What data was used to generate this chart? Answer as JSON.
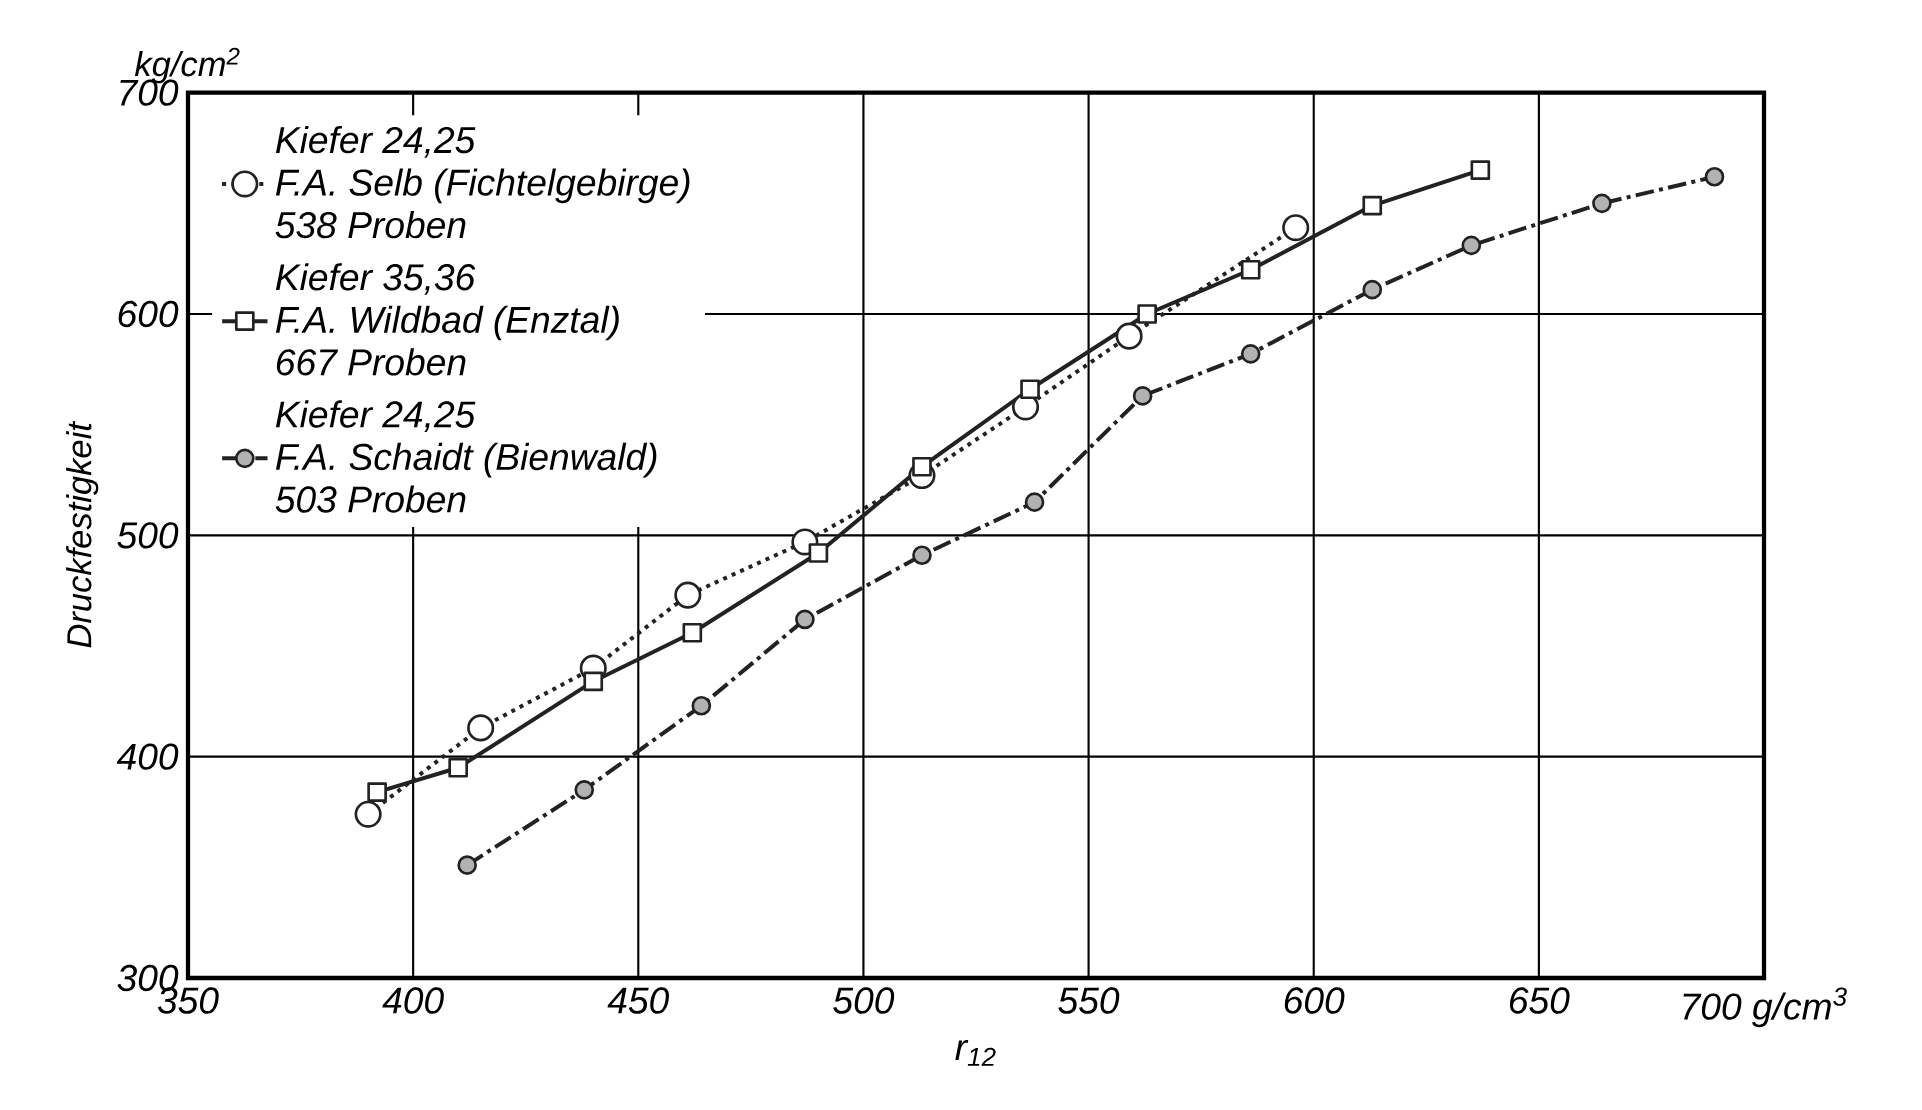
{
  "chart_data": {
    "type": "line",
    "xlabel": "r$_{12}$",
    "ylabel": "Druckfestigkeit",
    "annotations": [
      "kg/cm$^{2}$",
      "Kiefer 24,25",
      "538 Proben",
      "Kiefer 35,36",
      "667 Proben",
      "Kiefer 24,25",
      "503 Proben"
    ],
    "xlim": [
      350,
      700
    ],
    "ylim": [
      300,
      700
    ],
    "xticks": [
      350,
      400,
      450,
      500,
      550,
      600,
      650,
      {
        "value": 700,
        "label": "700 g/cm$^{3}$"
      }
    ],
    "yticks": [
      300,
      400,
      500,
      600,
      700
    ],
    "grid": true,
    "legend": "top left",
    "series": [
      {
        "name": "F.A. Selb (Fichtelgebirge)",
        "color": "#222222",
        "marker": "circle",
        "line_style": "dotted",
        "x": [
          390,
          415,
          440,
          461,
          487,
          513,
          536,
          559,
          596
        ],
        "values": [
          374,
          413,
          440,
          473,
          497,
          527,
          558,
          590,
          639
        ]
      },
      {
        "name": "F.A. Wildbad (Enztal)",
        "color": "#222222",
        "marker": "square",
        "line_style": "solid",
        "x": [
          392,
          410,
          440,
          462,
          490,
          513,
          537,
          563,
          586,
          613,
          637
        ],
        "values": [
          384,
          395,
          434,
          456,
          492,
          531,
          566,
          600,
          620,
          649,
          665
        ]
      },
      {
        "name": "F.A. Schaidt (Bienwald)",
        "color": "#222222",
        "marker": "circle",
        "line_style": "dashed",
        "x": [
          412,
          438,
          464,
          487,
          513,
          538,
          562,
          586,
          613,
          635,
          664,
          689
        ],
        "values": [
          351,
          385,
          423,
          462,
          491,
          515,
          563,
          582,
          611,
          631,
          650,
          662
        ]
      }
    ]
  }
}
